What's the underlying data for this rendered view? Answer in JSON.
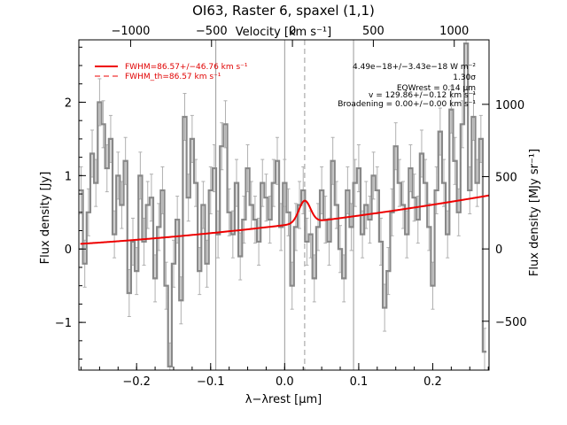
{
  "chart_data": {
    "type": "line",
    "title": "OI63, Raster 6, spaxel (1,1)",
    "xlabel": "λ−λrest [μm]",
    "ylabel": "Flux density [Jy]",
    "ylabel_right": "Flux density [MJy sr⁻¹]",
    "xlabel_top": "Velocity [km s⁻¹]",
    "xlim": [
      -0.278,
      0.276
    ],
    "ylim": [
      -1.65,
      2.85
    ],
    "y2lim": [
      -838,
      1446
    ],
    "top_xlim": [
      -1320,
      1215
    ],
    "x_ticks": [
      "−0.2",
      "−0.1",
      "0.0",
      "0.1",
      "0.2"
    ],
    "x_tick_values": [
      -0.2,
      -0.1,
      0.0,
      0.1,
      0.2
    ],
    "y_ticks": [
      "−1",
      "0",
      "1",
      "2"
    ],
    "y_tick_values": [
      -1,
      0,
      1,
      2
    ],
    "y2_ticks": [
      "−500",
      "0",
      "500",
      "1000"
    ],
    "y2_tick_values": [
      -500,
      0,
      500,
      1000
    ],
    "top_ticks": [
      "−1000",
      "−500",
      "0",
      "500",
      "1000"
    ],
    "top_tick_values": [
      -1000,
      -500,
      0,
      500,
      1000
    ],
    "vlines_solid": [
      -0.093,
      0.0,
      0.093
    ],
    "vline_dashed": 0.027,
    "legend": [
      {
        "label": "FWHM=86.57+/−46.76 km s⁻¹",
        "style": "solid"
      },
      {
        "label": "FWHM_th=86.57 km s⁻¹",
        "style": "dashed"
      }
    ],
    "annotations": [
      "4.49e−18+/−3.43e−18 W m⁻²",
      "1.30σ",
      "EQWrest = 0.14 μm",
      "v = 129.86+/−0.12 km s⁻¹",
      "Broadening = 0.00+/−0.00 km s⁻¹"
    ],
    "series": [
      {
        "style": "step",
        "x": [
          -0.275,
          -0.27,
          -0.265,
          -0.26,
          -0.255,
          -0.25,
          -0.245,
          -0.24,
          -0.235,
          -0.23,
          -0.225,
          -0.22,
          -0.215,
          -0.21,
          -0.205,
          -0.2,
          -0.195,
          -0.19,
          -0.185,
          -0.18,
          -0.175,
          -0.17,
          -0.165,
          -0.16,
          -0.155,
          -0.15,
          -0.145,
          -0.14,
          -0.135,
          -0.13,
          -0.125,
          -0.12,
          -0.115,
          -0.11,
          -0.105,
          -0.1,
          -0.095,
          -0.09,
          -0.085,
          -0.08,
          -0.075,
          -0.07,
          -0.065,
          -0.06,
          -0.055,
          -0.05,
          -0.045,
          -0.04,
          -0.035,
          -0.03,
          -0.025,
          -0.02,
          -0.015,
          -0.01,
          -0.005,
          0.0,
          0.005,
          0.01,
          0.015,
          0.02,
          0.025,
          0.03,
          0.035,
          0.04,
          0.045,
          0.05,
          0.055,
          0.06,
          0.065,
          0.07,
          0.075,
          0.08,
          0.085,
          0.09,
          0.095,
          0.1,
          0.105,
          0.11,
          0.115,
          0.12,
          0.125,
          0.13,
          0.135,
          0.14,
          0.145,
          0.15,
          0.155,
          0.16,
          0.165,
          0.17,
          0.175,
          0.18,
          0.185,
          0.19,
          0.195,
          0.2,
          0.205,
          0.21,
          0.215,
          0.22,
          0.225,
          0.23,
          0.235,
          0.24,
          0.245,
          0.25,
          0.255,
          0.26,
          0.265,
          0.27
        ],
        "y": [
          0.8,
          -0.2,
          0.5,
          1.3,
          0.9,
          2.0,
          1.7,
          1.1,
          1.5,
          0.2,
          1.0,
          0.6,
          1.2,
          -0.6,
          0.1,
          -0.3,
          1.0,
          0.1,
          0.6,
          0.7,
          -0.4,
          0.3,
          0.8,
          -0.5,
          -1.6,
          -0.2,
          0.4,
          -0.7,
          1.8,
          0.7,
          1.5,
          0.9,
          -0.3,
          0.6,
          -0.2,
          0.8,
          1.1,
          0.2,
          1.4,
          1.7,
          0.5,
          0.2,
          0.9,
          -0.1,
          0.4,
          1.1,
          0.6,
          0.4,
          0.1,
          0.9,
          0.7,
          0.4,
          0.9,
          1.2,
          0.3,
          0.9,
          0.5,
          -0.5,
          0.3,
          0.6,
          0.8,
          0.1,
          0.2,
          -0.4,
          0.3,
          0.8,
          0.4,
          0.1,
          1.2,
          0.6,
          0.0,
          -0.4,
          0.8,
          0.3,
          0.9,
          1.1,
          0.2,
          0.6,
          0.4,
          1.0,
          0.8,
          0.1,
          -0.8,
          -0.3,
          0.5,
          1.4,
          0.9,
          0.6,
          0.2,
          1.1,
          0.7,
          0.4,
          1.3,
          0.9,
          0.3,
          -0.5,
          0.8,
          1.6,
          0.9,
          0.2,
          1.9,
          1.2,
          0.5,
          1.7,
          2.8,
          0.8,
          1.8,
          0.9,
          1.5,
          -1.4
        ],
        "error": 0.32
      },
      {
        "style": "line",
        "name": "FWHM=86.57+/−46.76 km s⁻¹",
        "continuum": {
          "x": [
            -0.276,
            0.276
          ],
          "y": [
            0.07,
            0.73
          ]
        },
        "gaussian": {
          "center": 0.027,
          "amplitude": 0.3,
          "fwhm": 0.0185
        }
      }
    ],
    "colors": {
      "data": "#888888",
      "errorbars": "#b0b0b0",
      "fit": "#ee0000",
      "vlines": "#999999"
    }
  }
}
